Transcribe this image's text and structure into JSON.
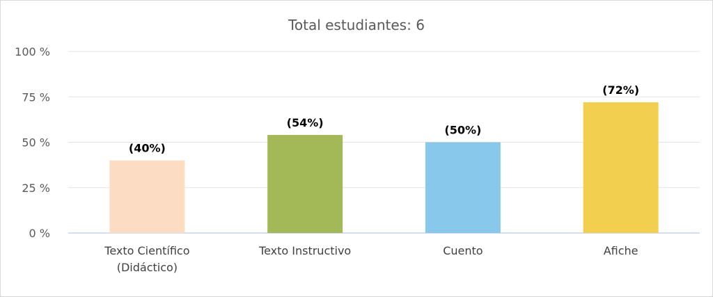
{
  "chart_data": {
    "type": "bar",
    "title": "Total estudiantes: 6",
    "categories": [
      [
        "Texto Científico",
        "(Didáctico)"
      ],
      [
        "Texto Instructivo"
      ],
      [
        "Cuento"
      ],
      [
        "Afiche"
      ]
    ],
    "values": [
      40,
      54,
      50,
      72
    ],
    "data_labels": [
      "(40%)",
      "(54%)",
      "(50%)",
      "(72%)"
    ],
    "colors": [
      "#FDDCC4",
      "#A3B957",
      "#88C8EB",
      "#F2CF4F"
    ],
    "yticks": [
      "0 %",
      "25 %",
      "50 %",
      "75 %",
      "100 %"
    ],
    "ylim": [
      0,
      100
    ],
    "grid": true,
    "legend": "none"
  }
}
